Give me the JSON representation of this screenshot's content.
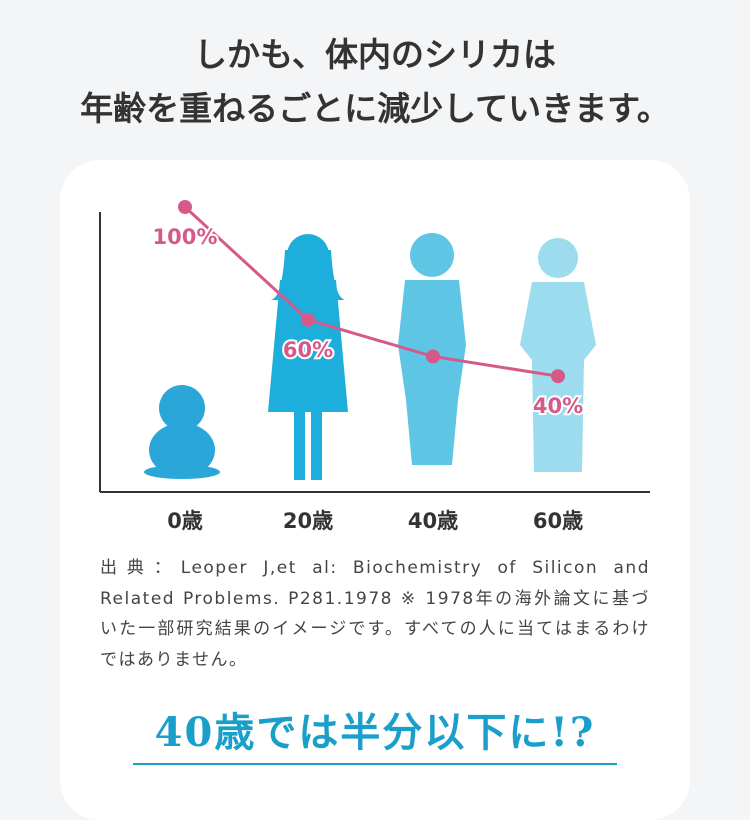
{
  "heading": [
    "しかも、体内のシリカは",
    "年齢を重ねるごとに減少していきます。"
  ],
  "chart_data": {
    "type": "line",
    "categories": [
      "0歳",
      "20歳",
      "40歳",
      "60歳"
    ],
    "values": [
      100,
      60,
      47,
      40
    ],
    "value_labels": [
      "100%",
      "60%",
      null,
      "40%"
    ],
    "color": "#d6598a"
  },
  "source": "出典：Leoper J,et al: Biochemistry of Silicon and Related Problems. P281.1978 ※ 1978年の海外論文に基づいた一部研究結果のイメージです。すべての人に当てはまるわけではありません。",
  "conclusion": "40歳では半分以下に!?"
}
